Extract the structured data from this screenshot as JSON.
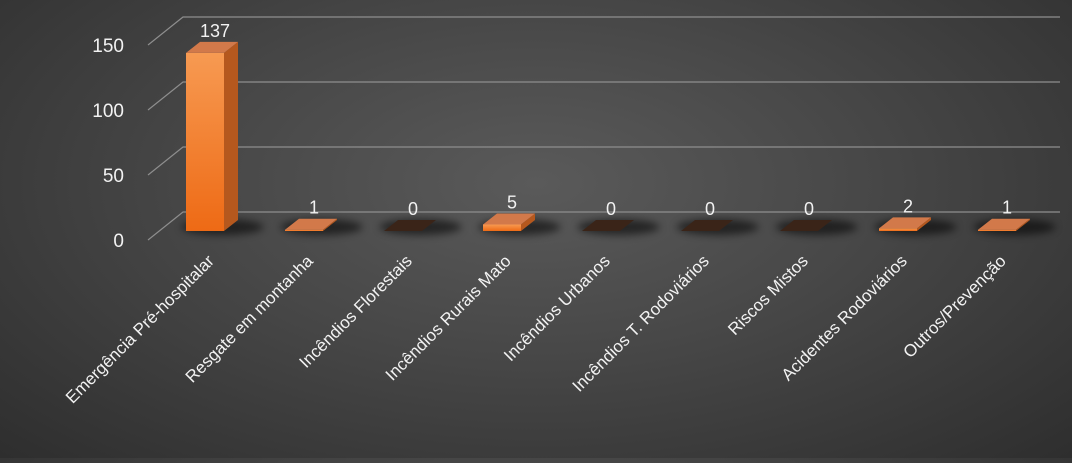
{
  "chart_data": {
    "type": "bar",
    "categories": [
      "Emergência Pré-hospitalar",
      "Resgate em montanha",
      "Incêndios Florestais",
      "Incêndios Rurais Mato",
      "Incêndios Urbanos",
      "Incêndios T. Rodoviários",
      "Riscos Mistos",
      "Acidentes Rodoviários",
      "Outros/Prevenção"
    ],
    "values": [
      137,
      1,
      0,
      5,
      0,
      0,
      0,
      2,
      1
    ],
    "data_labels": [
      "137",
      "1",
      "0",
      "5",
      "0",
      "0",
      "0",
      "2",
      "1"
    ],
    "ylim": [
      0,
      150
    ],
    "yticks": [
      0,
      50,
      100,
      150
    ],
    "ytick_labels": [
      "0",
      "50",
      "100",
      "150"
    ],
    "grid": true,
    "style": "3d-column",
    "colors": {
      "bar_front_top": "#f79a52",
      "bar_front_bottom": "#ee6a15",
      "bar_side": "#b5581e",
      "bar_top": "#d2794a",
      "text": "#f2f2f2",
      "grid": "#8e8e8e"
    }
  }
}
